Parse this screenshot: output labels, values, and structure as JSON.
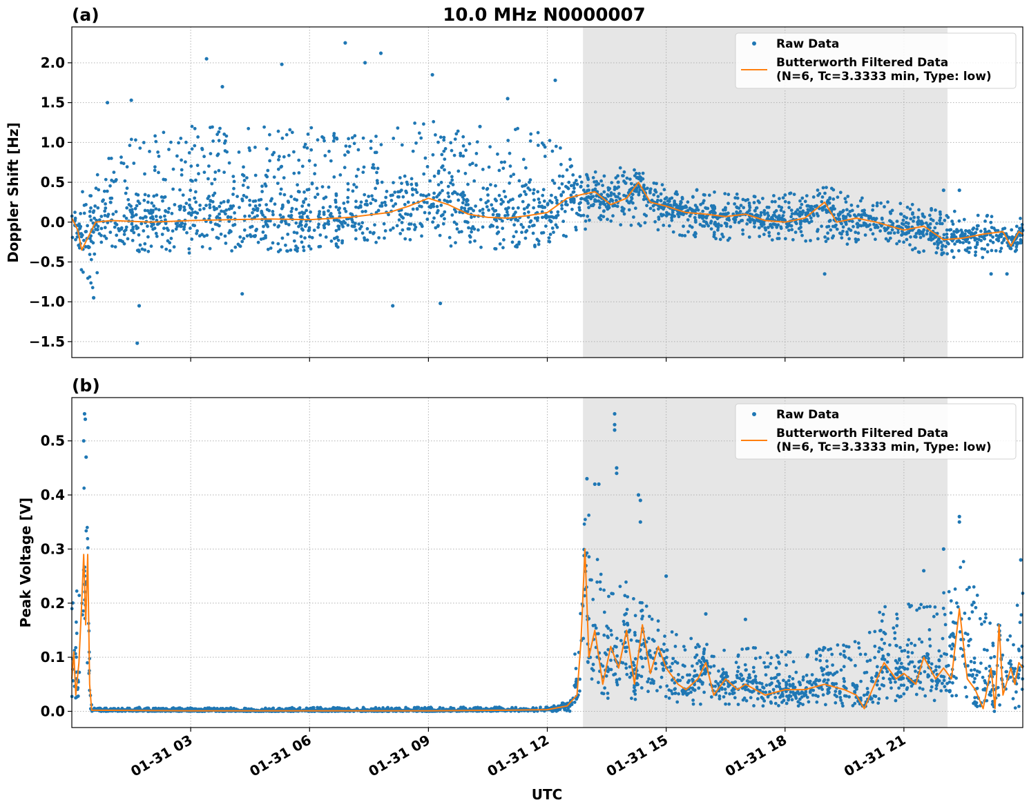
{
  "figure": {
    "title": "10.0 MHz N0000007",
    "xlabel": "UTC",
    "colors": {
      "raw": "#1f77b4",
      "filtered": "#ff7f0e",
      "shade": "#e6e6e6"
    }
  },
  "chart_data": [
    {
      "panel_label": "(a)",
      "type": "scatter",
      "title": "10.0 MHz N0000007",
      "xlabel": "",
      "ylabel": "Doppler Shift [Hz]",
      "xlim_hours": [
        0.0,
        24.0
      ],
      "ylim": [
        -1.7,
        2.45
      ],
      "grid": true,
      "legend_position": "top-right",
      "x_ticks": [
        {
          "v": 3,
          "label": "01-31 03"
        },
        {
          "v": 6,
          "label": "01-31 06"
        },
        {
          "v": 9,
          "label": "01-31 09"
        },
        {
          "v": 12,
          "label": "01-31 12"
        },
        {
          "v": 15,
          "label": "01-31 15"
        },
        {
          "v": 18,
          "label": "01-31 18"
        },
        {
          "v": 21,
          "label": "01-31 21"
        }
      ],
      "y_ticks": [
        {
          "v": 2.0,
          "label": "2.0"
        },
        {
          "v": 1.5,
          "label": "1.5"
        },
        {
          "v": 1.0,
          "label": "1.0"
        },
        {
          "v": 0.5,
          "label": "0.5"
        },
        {
          "v": 0.0,
          "label": "0.0"
        },
        {
          "v": -0.5,
          "label": "−0.5"
        },
        {
          "v": -1.0,
          "label": "−1.0"
        },
        {
          "v": -1.5,
          "label": "−1.5"
        }
      ],
      "shaded_span_hours": [
        12.9,
        22.1
      ],
      "series": [
        {
          "name": "Raw Data",
          "style": "points",
          "envelope": [
            [
              0.0,
              -0.35,
              0.15
            ],
            [
              0.5,
              -0.9,
              0.6
            ],
            [
              1.0,
              -0.3,
              1.0
            ],
            [
              2.0,
              -0.4,
              1.1
            ],
            [
              3.0,
              -0.4,
              1.2
            ],
            [
              4.0,
              -0.4,
              1.3
            ],
            [
              5.0,
              -0.4,
              1.2
            ],
            [
              6.0,
              -0.35,
              1.2
            ],
            [
              7.0,
              -0.3,
              1.1
            ],
            [
              8.0,
              -0.25,
              1.2
            ],
            [
              9.0,
              -0.3,
              1.3
            ],
            [
              10.0,
              -0.3,
              1.1
            ],
            [
              11.0,
              -0.35,
              1.2
            ],
            [
              12.0,
              -0.3,
              1.1
            ],
            [
              12.9,
              -0.1,
              0.65
            ],
            [
              13.5,
              -0.05,
              0.65
            ],
            [
              14.0,
              -0.05,
              0.7
            ],
            [
              14.5,
              -0.05,
              0.6
            ],
            [
              15.0,
              -0.15,
              0.45
            ],
            [
              16.0,
              -0.2,
              0.4
            ],
            [
              17.0,
              -0.25,
              0.35
            ],
            [
              18.0,
              -0.25,
              0.35
            ],
            [
              19.0,
              -0.25,
              0.45
            ],
            [
              20.0,
              -0.3,
              0.3
            ],
            [
              21.0,
              -0.35,
              0.25
            ],
            [
              22.0,
              -0.45,
              0.15
            ],
            [
              23.0,
              -0.45,
              0.1
            ],
            [
              24.0,
              -0.35,
              0.05
            ]
          ],
          "outliers": [
            [
              1.65,
              -1.52
            ],
            [
              1.7,
              -1.05
            ],
            [
              0.55,
              -0.95
            ],
            [
              4.3,
              -0.9
            ],
            [
              8.1,
              -1.05
            ],
            [
              9.3,
              -1.02
            ],
            [
              6.9,
              2.25
            ],
            [
              3.4,
              2.05
            ],
            [
              5.3,
              1.98
            ],
            [
              7.4,
              2.0
            ],
            [
              7.8,
              2.12
            ],
            [
              9.1,
              1.85
            ],
            [
              12.2,
              1.78
            ],
            [
              11.0,
              1.55
            ],
            [
              1.5,
              1.53
            ],
            [
              19.0,
              -0.65
            ],
            [
              23.2,
              -0.65
            ],
            [
              23.6,
              -0.65
            ],
            [
              22.0,
              0.4
            ],
            [
              22.4,
              0.4
            ],
            [
              0.9,
              1.5
            ],
            [
              3.8,
              1.7
            ],
            [
              10.3,
              1.2
            ]
          ]
        },
        {
          "name": "Butterworth Filtered Data\n(N=6, Tc=3.3333 min, Type: low)",
          "style": "line",
          "points": [
            [
              0.0,
              0.05
            ],
            [
              0.15,
              -0.1
            ],
            [
              0.25,
              -0.35
            ],
            [
              0.4,
              -0.2
            ],
            [
              0.6,
              0.0
            ],
            [
              1.0,
              0.02
            ],
            [
              2.0,
              0.0
            ],
            [
              3.0,
              0.02
            ],
            [
              4.0,
              0.03
            ],
            [
              5.0,
              0.04
            ],
            [
              6.0,
              0.03
            ],
            [
              7.0,
              0.06
            ],
            [
              8.0,
              0.12
            ],
            [
              8.5,
              0.2
            ],
            [
              9.0,
              0.3
            ],
            [
              9.5,
              0.22
            ],
            [
              10.0,
              0.1
            ],
            [
              10.5,
              0.06
            ],
            [
              11.0,
              0.05
            ],
            [
              11.5,
              0.08
            ],
            [
              12.0,
              0.12
            ],
            [
              12.5,
              0.3
            ],
            [
              12.9,
              0.35
            ],
            [
              13.2,
              0.38
            ],
            [
              13.6,
              0.22
            ],
            [
              14.0,
              0.3
            ],
            [
              14.3,
              0.5
            ],
            [
              14.6,
              0.25
            ],
            [
              15.0,
              0.2
            ],
            [
              15.5,
              0.12
            ],
            [
              16.0,
              0.1
            ],
            [
              16.5,
              0.07
            ],
            [
              17.0,
              0.1
            ],
            [
              17.5,
              0.02
            ],
            [
              18.0,
              0.0
            ],
            [
              18.5,
              0.05
            ],
            [
              19.0,
              0.25
            ],
            [
              19.3,
              0.0
            ],
            [
              19.8,
              0.05
            ],
            [
              20.3,
              0.0
            ],
            [
              21.0,
              -0.1
            ],
            [
              21.5,
              -0.05
            ],
            [
              22.0,
              -0.22
            ],
            [
              22.5,
              -0.2
            ],
            [
              23.0,
              -0.15
            ],
            [
              23.5,
              -0.12
            ],
            [
              23.7,
              -0.3
            ],
            [
              23.9,
              -0.12
            ],
            [
              24.0,
              -0.15
            ]
          ]
        }
      ]
    },
    {
      "panel_label": "(b)",
      "type": "scatter",
      "title": "",
      "xlabel": "UTC",
      "ylabel": "Peak Voltage [V]",
      "xlim_hours": [
        0.0,
        24.0
      ],
      "ylim": [
        -0.03,
        0.58
      ],
      "grid": true,
      "legend_position": "top-right",
      "x_ticks": [
        {
          "v": 3,
          "label": "01-31 03"
        },
        {
          "v": 6,
          "label": "01-31 06"
        },
        {
          "v": 9,
          "label": "01-31 09"
        },
        {
          "v": 12,
          "label": "01-31 12"
        },
        {
          "v": 15,
          "label": "01-31 15"
        },
        {
          "v": 18,
          "label": "01-31 18"
        },
        {
          "v": 21,
          "label": "01-31 21"
        }
      ],
      "y_ticks": [
        {
          "v": 0.5,
          "label": "0.5"
        },
        {
          "v": 0.4,
          "label": "0.4"
        },
        {
          "v": 0.3,
          "label": "0.3"
        },
        {
          "v": 0.2,
          "label": "0.2"
        },
        {
          "v": 0.1,
          "label": "0.1"
        },
        {
          "v": 0.0,
          "label": "0.0"
        }
      ],
      "shaded_span_hours": [
        12.9,
        22.1
      ],
      "series": [
        {
          "name": "Raw Data",
          "style": "points",
          "envelope": [
            [
              0.0,
              0.02,
              0.22
            ],
            [
              0.2,
              0.03,
              0.3
            ],
            [
              0.3,
              0.1,
              0.45
            ],
            [
              0.4,
              0.03,
              0.38
            ],
            [
              0.45,
              0.0,
              0.1
            ],
            [
              0.5,
              0.0,
              0.006
            ],
            [
              12.0,
              0.0,
              0.008
            ],
            [
              12.6,
              0.0,
              0.02
            ],
            [
              12.8,
              0.02,
              0.22
            ],
            [
              12.95,
              0.08,
              0.42
            ],
            [
              13.2,
              0.03,
              0.3
            ],
            [
              13.6,
              0.02,
              0.25
            ],
            [
              14.0,
              0.02,
              0.25
            ],
            [
              14.5,
              0.02,
              0.2
            ],
            [
              15.0,
              0.02,
              0.15
            ],
            [
              16.0,
              0.01,
              0.13
            ],
            [
              17.0,
              0.01,
              0.12
            ],
            [
              18.0,
              0.01,
              0.11
            ],
            [
              19.0,
              0.01,
              0.12
            ],
            [
              20.0,
              0.01,
              0.14
            ],
            [
              20.5,
              0.0,
              0.2
            ],
            [
              21.0,
              0.02,
              0.2
            ],
            [
              21.5,
              0.02,
              0.2
            ],
            [
              22.0,
              0.02,
              0.22
            ],
            [
              22.5,
              0.03,
              0.28
            ],
            [
              23.0,
              0.0,
              0.2
            ],
            [
              23.5,
              0.0,
              0.16
            ],
            [
              24.0,
              0.01,
              0.22
            ]
          ],
          "outliers": [
            [
              0.32,
              0.55
            ],
            [
              0.34,
              0.54
            ],
            [
              0.3,
              0.5
            ],
            [
              0.36,
              0.47
            ],
            [
              13.7,
              0.55
            ],
            [
              13.7,
              0.53
            ],
            [
              13.7,
              0.52
            ],
            [
              13.75,
              0.45
            ],
            [
              13.75,
              0.44
            ],
            [
              14.3,
              0.4
            ],
            [
              14.35,
              0.39
            ],
            [
              14.35,
              0.35
            ],
            [
              13.0,
              0.43
            ],
            [
              13.2,
              0.42
            ],
            [
              13.3,
              0.42
            ],
            [
              22.4,
              0.36
            ],
            [
              22.4,
              0.35
            ],
            [
              22.0,
              0.3
            ],
            [
              23.95,
              0.28
            ],
            [
              21.5,
              0.26
            ],
            [
              15.0,
              0.25
            ],
            [
              16.0,
              0.18
            ],
            [
              17.0,
              0.17
            ],
            [
              1.7,
              0.007
            ]
          ]
        },
        {
          "name": "Butterworth Filtered Data\n(N=6, Tc=3.3333 min, Type: low)",
          "style": "line",
          "points": [
            [
              0.0,
              0.06
            ],
            [
              0.05,
              0.11
            ],
            [
              0.1,
              0.03
            ],
            [
              0.18,
              0.09
            ],
            [
              0.25,
              0.2
            ],
            [
              0.3,
              0.29
            ],
            [
              0.35,
              0.16
            ],
            [
              0.4,
              0.29
            ],
            [
              0.45,
              0.05
            ],
            [
              0.5,
              0.002
            ],
            [
              3.0,
              0.001
            ],
            [
              6.0,
              0.001
            ],
            [
              9.0,
              0.001
            ],
            [
              11.0,
              0.002
            ],
            [
              12.0,
              0.003
            ],
            [
              12.5,
              0.01
            ],
            [
              12.75,
              0.03
            ],
            [
              12.85,
              0.13
            ],
            [
              12.95,
              0.3
            ],
            [
              13.05,
              0.1
            ],
            [
              13.2,
              0.15
            ],
            [
              13.4,
              0.05
            ],
            [
              13.6,
              0.12
            ],
            [
              13.8,
              0.08
            ],
            [
              14.0,
              0.15
            ],
            [
              14.2,
              0.05
            ],
            [
              14.4,
              0.16
            ],
            [
              14.6,
              0.07
            ],
            [
              14.8,
              0.12
            ],
            [
              15.0,
              0.08
            ],
            [
              15.3,
              0.05
            ],
            [
              15.5,
              0.04
            ],
            [
              15.8,
              0.06
            ],
            [
              16.0,
              0.09
            ],
            [
              16.2,
              0.03
            ],
            [
              16.5,
              0.06
            ],
            [
              16.8,
              0.04
            ],
            [
              17.0,
              0.05
            ],
            [
              17.5,
              0.03
            ],
            [
              18.0,
              0.04
            ],
            [
              18.5,
              0.04
            ],
            [
              19.0,
              0.05
            ],
            [
              19.5,
              0.04
            ],
            [
              19.8,
              0.03
            ],
            [
              20.0,
              0.005
            ],
            [
              20.2,
              0.04
            ],
            [
              20.5,
              0.09
            ],
            [
              20.8,
              0.06
            ],
            [
              21.0,
              0.07
            ],
            [
              21.3,
              0.05
            ],
            [
              21.5,
              0.1
            ],
            [
              21.8,
              0.06
            ],
            [
              22.0,
              0.08
            ],
            [
              22.2,
              0.06
            ],
            [
              22.4,
              0.19
            ],
            [
              22.6,
              0.06
            ],
            [
              22.8,
              0.04
            ],
            [
              23.0,
              0.005
            ],
            [
              23.2,
              0.08
            ],
            [
              23.3,
              0.005
            ],
            [
              23.4,
              0.16
            ],
            [
              23.5,
              0.03
            ],
            [
              23.7,
              0.08
            ],
            [
              23.8,
              0.05
            ],
            [
              23.9,
              0.09
            ],
            [
              24.0,
              0.08
            ]
          ]
        }
      ]
    }
  ]
}
